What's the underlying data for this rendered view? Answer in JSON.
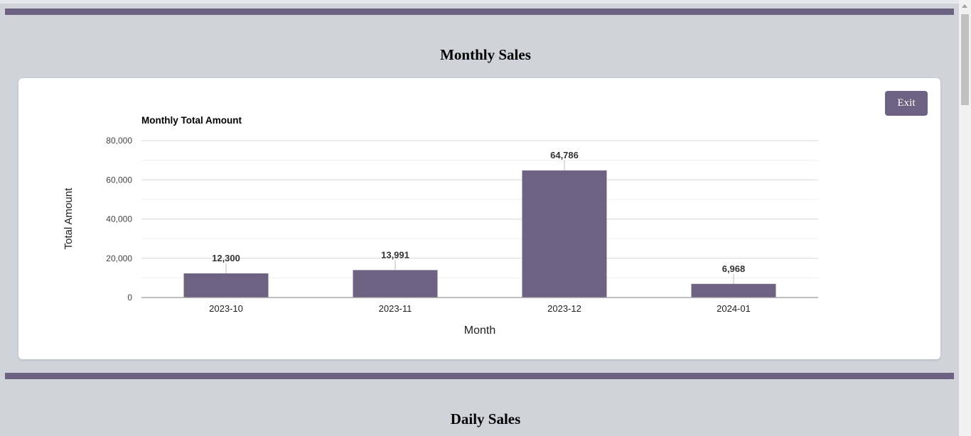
{
  "sections": {
    "monthly_title": "Monthly Sales",
    "daily_title": "Daily Sales"
  },
  "buttons": {
    "exit_label": "Exit"
  },
  "colors": {
    "accent": "#6e6283",
    "background": "#d1d3db"
  },
  "chart_data": {
    "type": "bar",
    "title": "Monthly Total Amount",
    "xlabel": "Month",
    "ylabel": "Total Amount",
    "categories": [
      "2023-10",
      "2023-11",
      "2023-12",
      "2024-01"
    ],
    "values": [
      12300,
      13991,
      64786,
      6968
    ],
    "value_labels": [
      "12,300",
      "13,991",
      "64,786",
      "6,968"
    ],
    "ylim": [
      0,
      80000
    ],
    "yticks": [
      0,
      20000,
      40000,
      60000,
      80000
    ],
    "ytick_labels": [
      "0",
      "20,000",
      "40,000",
      "60,000",
      "80,000"
    ],
    "grid": true,
    "legend": "none",
    "bar_color": "#6e6283"
  }
}
